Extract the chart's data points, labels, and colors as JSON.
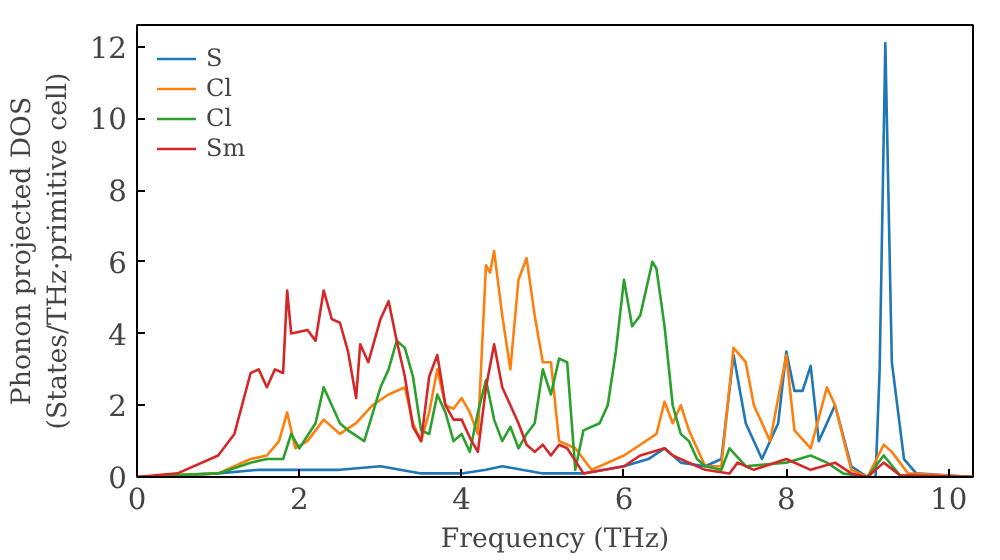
{
  "chart_data": {
    "type": "line",
    "xlabel": "Frequency (THz)",
    "ylabel": "Phonon projected DOS\n(States/THz·primitive cell)",
    "xlim": [
      0,
      10.3
    ],
    "ylim": [
      0,
      12.6
    ],
    "xticks": [
      0,
      2,
      4,
      6,
      8,
      10
    ],
    "yticks": [
      0,
      2,
      4,
      6,
      8,
      10,
      12
    ],
    "grid": false,
    "legend": "top left",
    "series": [
      {
        "name": "S",
        "color": "#1f77b4",
        "x": [
          0,
          1.0,
          1.5,
          2.0,
          2.5,
          3.0,
          3.5,
          4.0,
          4.3,
          4.5,
          5.0,
          5.5,
          6.0,
          6.3,
          6.5,
          6.7,
          7.0,
          7.2,
          7.35,
          7.5,
          7.7,
          7.9,
          8.0,
          8.1,
          8.2,
          8.3,
          8.4,
          8.6,
          8.8,
          9.0,
          9.1,
          9.15,
          9.22,
          9.3,
          9.45,
          9.6,
          10.3
        ],
        "values": [
          0,
          0.1,
          0.2,
          0.2,
          0.2,
          0.3,
          0.1,
          0.1,
          0.2,
          0.3,
          0.1,
          0.1,
          0.3,
          0.5,
          0.8,
          0.4,
          0.3,
          0.5,
          3.4,
          1.5,
          0.5,
          1.5,
          3.5,
          2.4,
          2.4,
          3.1,
          1.0,
          2.0,
          0.3,
          0,
          0,
          3.0,
          12.1,
          3.2,
          0.5,
          0.1,
          0
        ]
      },
      {
        "name": "Cl",
        "color": "#ff7f0e",
        "x": [
          0,
          1.0,
          1.4,
          1.6,
          1.75,
          1.85,
          1.95,
          2.1,
          2.3,
          2.5,
          2.7,
          2.9,
          3.1,
          3.3,
          3.4,
          3.5,
          3.6,
          3.7,
          3.8,
          3.9,
          4.0,
          4.1,
          4.2,
          4.3,
          4.35,
          4.4,
          4.5,
          4.6,
          4.7,
          4.8,
          4.9,
          5.0,
          5.1,
          5.2,
          5.4,
          5.6,
          6.0,
          6.2,
          6.4,
          6.5,
          6.6,
          6.7,
          6.8,
          7.0,
          7.2,
          7.35,
          7.5,
          7.6,
          7.8,
          8.0,
          8.1,
          8.3,
          8.5,
          8.6,
          8.8,
          9.0,
          9.2,
          9.3,
          9.5,
          10.3
        ],
        "values": [
          0,
          0.1,
          0.5,
          0.6,
          1.0,
          1.8,
          0.8,
          1.0,
          1.6,
          1.2,
          1.5,
          2.0,
          2.3,
          2.5,
          1.5,
          1.0,
          1.8,
          3.0,
          2.0,
          1.9,
          2.2,
          1.8,
          1.2,
          5.9,
          5.7,
          6.3,
          4.5,
          3.0,
          5.5,
          6.1,
          4.5,
          3.2,
          3.2,
          1.0,
          0.8,
          0.2,
          0.6,
          0.9,
          1.2,
          2.1,
          1.5,
          2.0,
          1.3,
          0.3,
          0.3,
          3.6,
          3.2,
          2.0,
          1.0,
          3.4,
          1.3,
          0.8,
          2.5,
          2.0,
          0.2,
          0,
          0.9,
          0.7,
          0.1,
          0
        ]
      },
      {
        "name": "Cl",
        "color": "#2ca02c",
        "x": [
          0,
          1.0,
          1.4,
          1.6,
          1.8,
          1.9,
          2.0,
          2.2,
          2.3,
          2.4,
          2.5,
          2.6,
          2.8,
          3.0,
          3.1,
          3.2,
          3.3,
          3.4,
          3.5,
          3.6,
          3.7,
          3.8,
          3.9,
          4.0,
          4.1,
          4.2,
          4.3,
          4.4,
          4.5,
          4.6,
          4.7,
          4.8,
          4.9,
          5.0,
          5.1,
          5.2,
          5.3,
          5.4,
          5.5,
          5.7,
          5.8,
          5.9,
          6.0,
          6.1,
          6.2,
          6.3,
          6.35,
          6.4,
          6.5,
          6.6,
          6.7,
          6.8,
          6.9,
          7.0,
          7.2,
          7.3,
          7.5,
          8.0,
          8.3,
          8.5,
          8.7,
          9.0,
          9.2,
          9.4,
          10.3
        ],
        "values": [
          0,
          0.1,
          0.4,
          0.5,
          0.5,
          1.2,
          0.8,
          1.5,
          2.5,
          2.0,
          1.5,
          1.3,
          1.0,
          2.5,
          3.0,
          3.8,
          3.6,
          2.8,
          1.3,
          1.2,
          2.3,
          1.8,
          1.0,
          1.2,
          0.7,
          1.8,
          2.7,
          1.6,
          1.0,
          1.4,
          0.8,
          1.2,
          1.5,
          3.0,
          2.3,
          3.3,
          3.2,
          0.2,
          1.3,
          1.5,
          2.0,
          3.5,
          5.5,
          4.2,
          4.5,
          5.5,
          6.0,
          5.8,
          4.2,
          2.0,
          1.2,
          1.0,
          0.5,
          0.3,
          0.2,
          0.8,
          0.3,
          0.4,
          0.6,
          0.4,
          0.1,
          0,
          0.6,
          0.05,
          0
        ]
      },
      {
        "name": "Sm",
        "color": "#d62728",
        "x": [
          0,
          0.5,
          1.0,
          1.2,
          1.4,
          1.5,
          1.6,
          1.7,
          1.8,
          1.85,
          1.9,
          2.1,
          2.2,
          2.3,
          2.4,
          2.5,
          2.6,
          2.7,
          2.75,
          2.85,
          3.0,
          3.1,
          3.2,
          3.3,
          3.4,
          3.5,
          3.6,
          3.7,
          3.8,
          3.9,
          4.0,
          4.1,
          4.2,
          4.3,
          4.4,
          4.5,
          4.6,
          4.7,
          4.8,
          4.9,
          5.0,
          5.1,
          5.2,
          5.3,
          5.5,
          6.0,
          6.2,
          6.5,
          6.6,
          7.0,
          7.3,
          7.4,
          7.6,
          8.0,
          8.3,
          8.6,
          8.8,
          9.0,
          9.2,
          9.4,
          10.3
        ],
        "values": [
          0,
          0.1,
          0.6,
          1.2,
          2.9,
          3.0,
          2.5,
          3.0,
          2.9,
          5.2,
          4.0,
          4.1,
          3.8,
          5.2,
          4.4,
          4.3,
          3.5,
          2.2,
          3.7,
          3.2,
          4.4,
          4.9,
          3.8,
          2.8,
          1.4,
          1.0,
          2.8,
          3.4,
          2.0,
          1.6,
          1.6,
          1.1,
          0.7,
          2.5,
          3.7,
          2.5,
          2.0,
          1.5,
          0.9,
          0.7,
          0.9,
          0.6,
          0.9,
          0.8,
          0.1,
          0.3,
          0.6,
          0.8,
          0.6,
          0.2,
          0.1,
          0.4,
          0.2,
          0.5,
          0.2,
          0.4,
          0.1,
          0,
          0.4,
          0.05,
          0
        ]
      }
    ]
  }
}
